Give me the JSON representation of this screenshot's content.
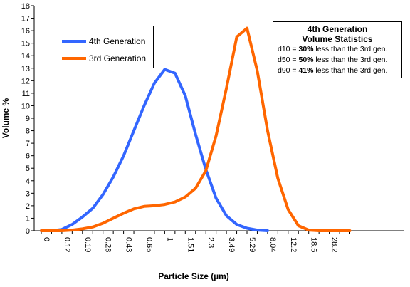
{
  "chart_data": {
    "type": "line",
    "xlabel": "Particle Size (µm)",
    "ylabel": "Volume %",
    "ylim": [
      0,
      18
    ],
    "y_ticks": [
      0,
      1,
      2,
      3,
      4,
      5,
      6,
      7,
      8,
      9,
      10,
      11,
      12,
      13,
      14,
      15,
      16,
      17,
      18
    ],
    "x_tick_labels": [
      "0",
      "0.12",
      "0.19",
      "0.28",
      "0.43",
      "0.65",
      "1",
      "1.51",
      "2.3",
      "3.49",
      "5.29",
      "8.04",
      "12.2",
      "18.5",
      "28.2"
    ],
    "grid": false,
    "legend_position": "top-left",
    "series": [
      {
        "name": "4th Generation",
        "color": "#3366ff",
        "points": [
          [
            0,
            0
          ],
          [
            1,
            0
          ],
          [
            2,
            0.1
          ],
          [
            3,
            0.5
          ],
          [
            4,
            1.1
          ],
          [
            5,
            1.8
          ],
          [
            6,
            2.9
          ],
          [
            7,
            4.3
          ],
          [
            8,
            6.0
          ],
          [
            9,
            8.0
          ],
          [
            10,
            10.0
          ],
          [
            11,
            11.8
          ],
          [
            12,
            12.9
          ],
          [
            13,
            12.6
          ],
          [
            14,
            10.8
          ],
          [
            15,
            7.7
          ],
          [
            16,
            4.9
          ],
          [
            17,
            2.6
          ],
          [
            18,
            1.2
          ],
          [
            19,
            0.5
          ],
          [
            20,
            0.2
          ],
          [
            21,
            0.05
          ],
          [
            22,
            0
          ]
        ]
      },
      {
        "name": "3rd Generation",
        "color": "#ff6600",
        "points": [
          [
            0,
            0
          ],
          [
            1,
            0
          ],
          [
            2,
            0
          ],
          [
            3,
            0.05
          ],
          [
            4,
            0.15
          ],
          [
            5,
            0.3
          ],
          [
            6,
            0.6
          ],
          [
            7,
            1.0
          ],
          [
            8,
            1.4
          ],
          [
            9,
            1.75
          ],
          [
            10,
            1.95
          ],
          [
            11,
            2.0
          ],
          [
            12,
            2.1
          ],
          [
            13,
            2.3
          ],
          [
            14,
            2.7
          ],
          [
            15,
            3.4
          ],
          [
            16,
            4.8
          ],
          [
            17,
            7.6
          ],
          [
            18,
            11.4
          ],
          [
            19,
            15.5
          ],
          [
            20,
            16.2
          ],
          [
            21,
            12.8
          ],
          [
            22,
            8.0
          ],
          [
            23,
            4.2
          ],
          [
            24,
            1.7
          ],
          [
            25,
            0.4
          ],
          [
            26,
            0.05
          ],
          [
            27,
            0
          ],
          [
            28,
            0
          ],
          [
            29,
            0
          ],
          [
            30,
            0
          ]
        ]
      }
    ],
    "annotation": {
      "title_line1": "4th Generation",
      "title_line2": "Volume Statistics",
      "lines": [
        {
          "prefix": "d10 = ",
          "value": "30%",
          "suffix": " less than the 3rd gen."
        },
        {
          "prefix": "d50 = ",
          "value": "50%",
          "suffix": " less than the 3rd gen."
        },
        {
          "prefix": "d90 = ",
          "value": "41%",
          "suffix": " less than the 3rd gen."
        }
      ]
    }
  }
}
